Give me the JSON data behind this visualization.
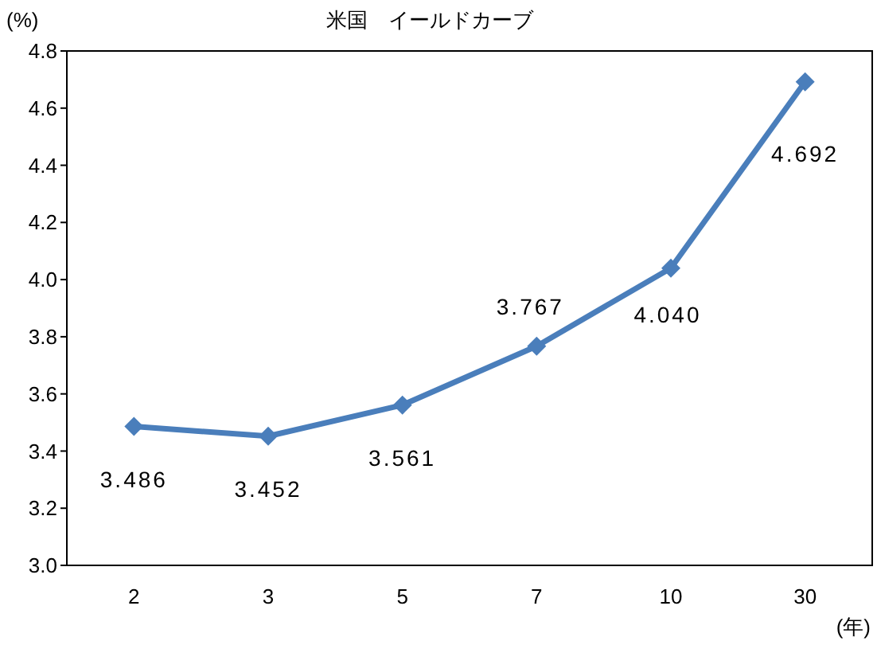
{
  "chart_data": {
    "type": "line",
    "title": "米国　イールドカーブ",
    "ylabel": "(%)",
    "xlabel": "(年)",
    "categories": [
      "2",
      "3",
      "5",
      "7",
      "10",
      "30"
    ],
    "series": [
      {
        "color": "#4a7ebb",
        "values": [
          3.486,
          3.452,
          3.561,
          3.767,
          4.04,
          4.692
        ]
      }
    ],
    "ylim": [
      3.0,
      4.8
    ],
    "yticks": [
      {
        "value": 3.0,
        "label": "3.0"
      },
      3.2,
      3.4,
      3.6,
      3.8,
      {
        "value": 4.0,
        "label": "4.0"
      },
      4.2,
      4.4,
      4.6,
      4.8
    ],
    "value_labels": [
      "3.486",
      "3.452",
      "3.561",
      "3.767",
      "4.040",
      "4.692"
    ],
    "marker": "diamond",
    "line_style": "solid",
    "grid": false
  }
}
